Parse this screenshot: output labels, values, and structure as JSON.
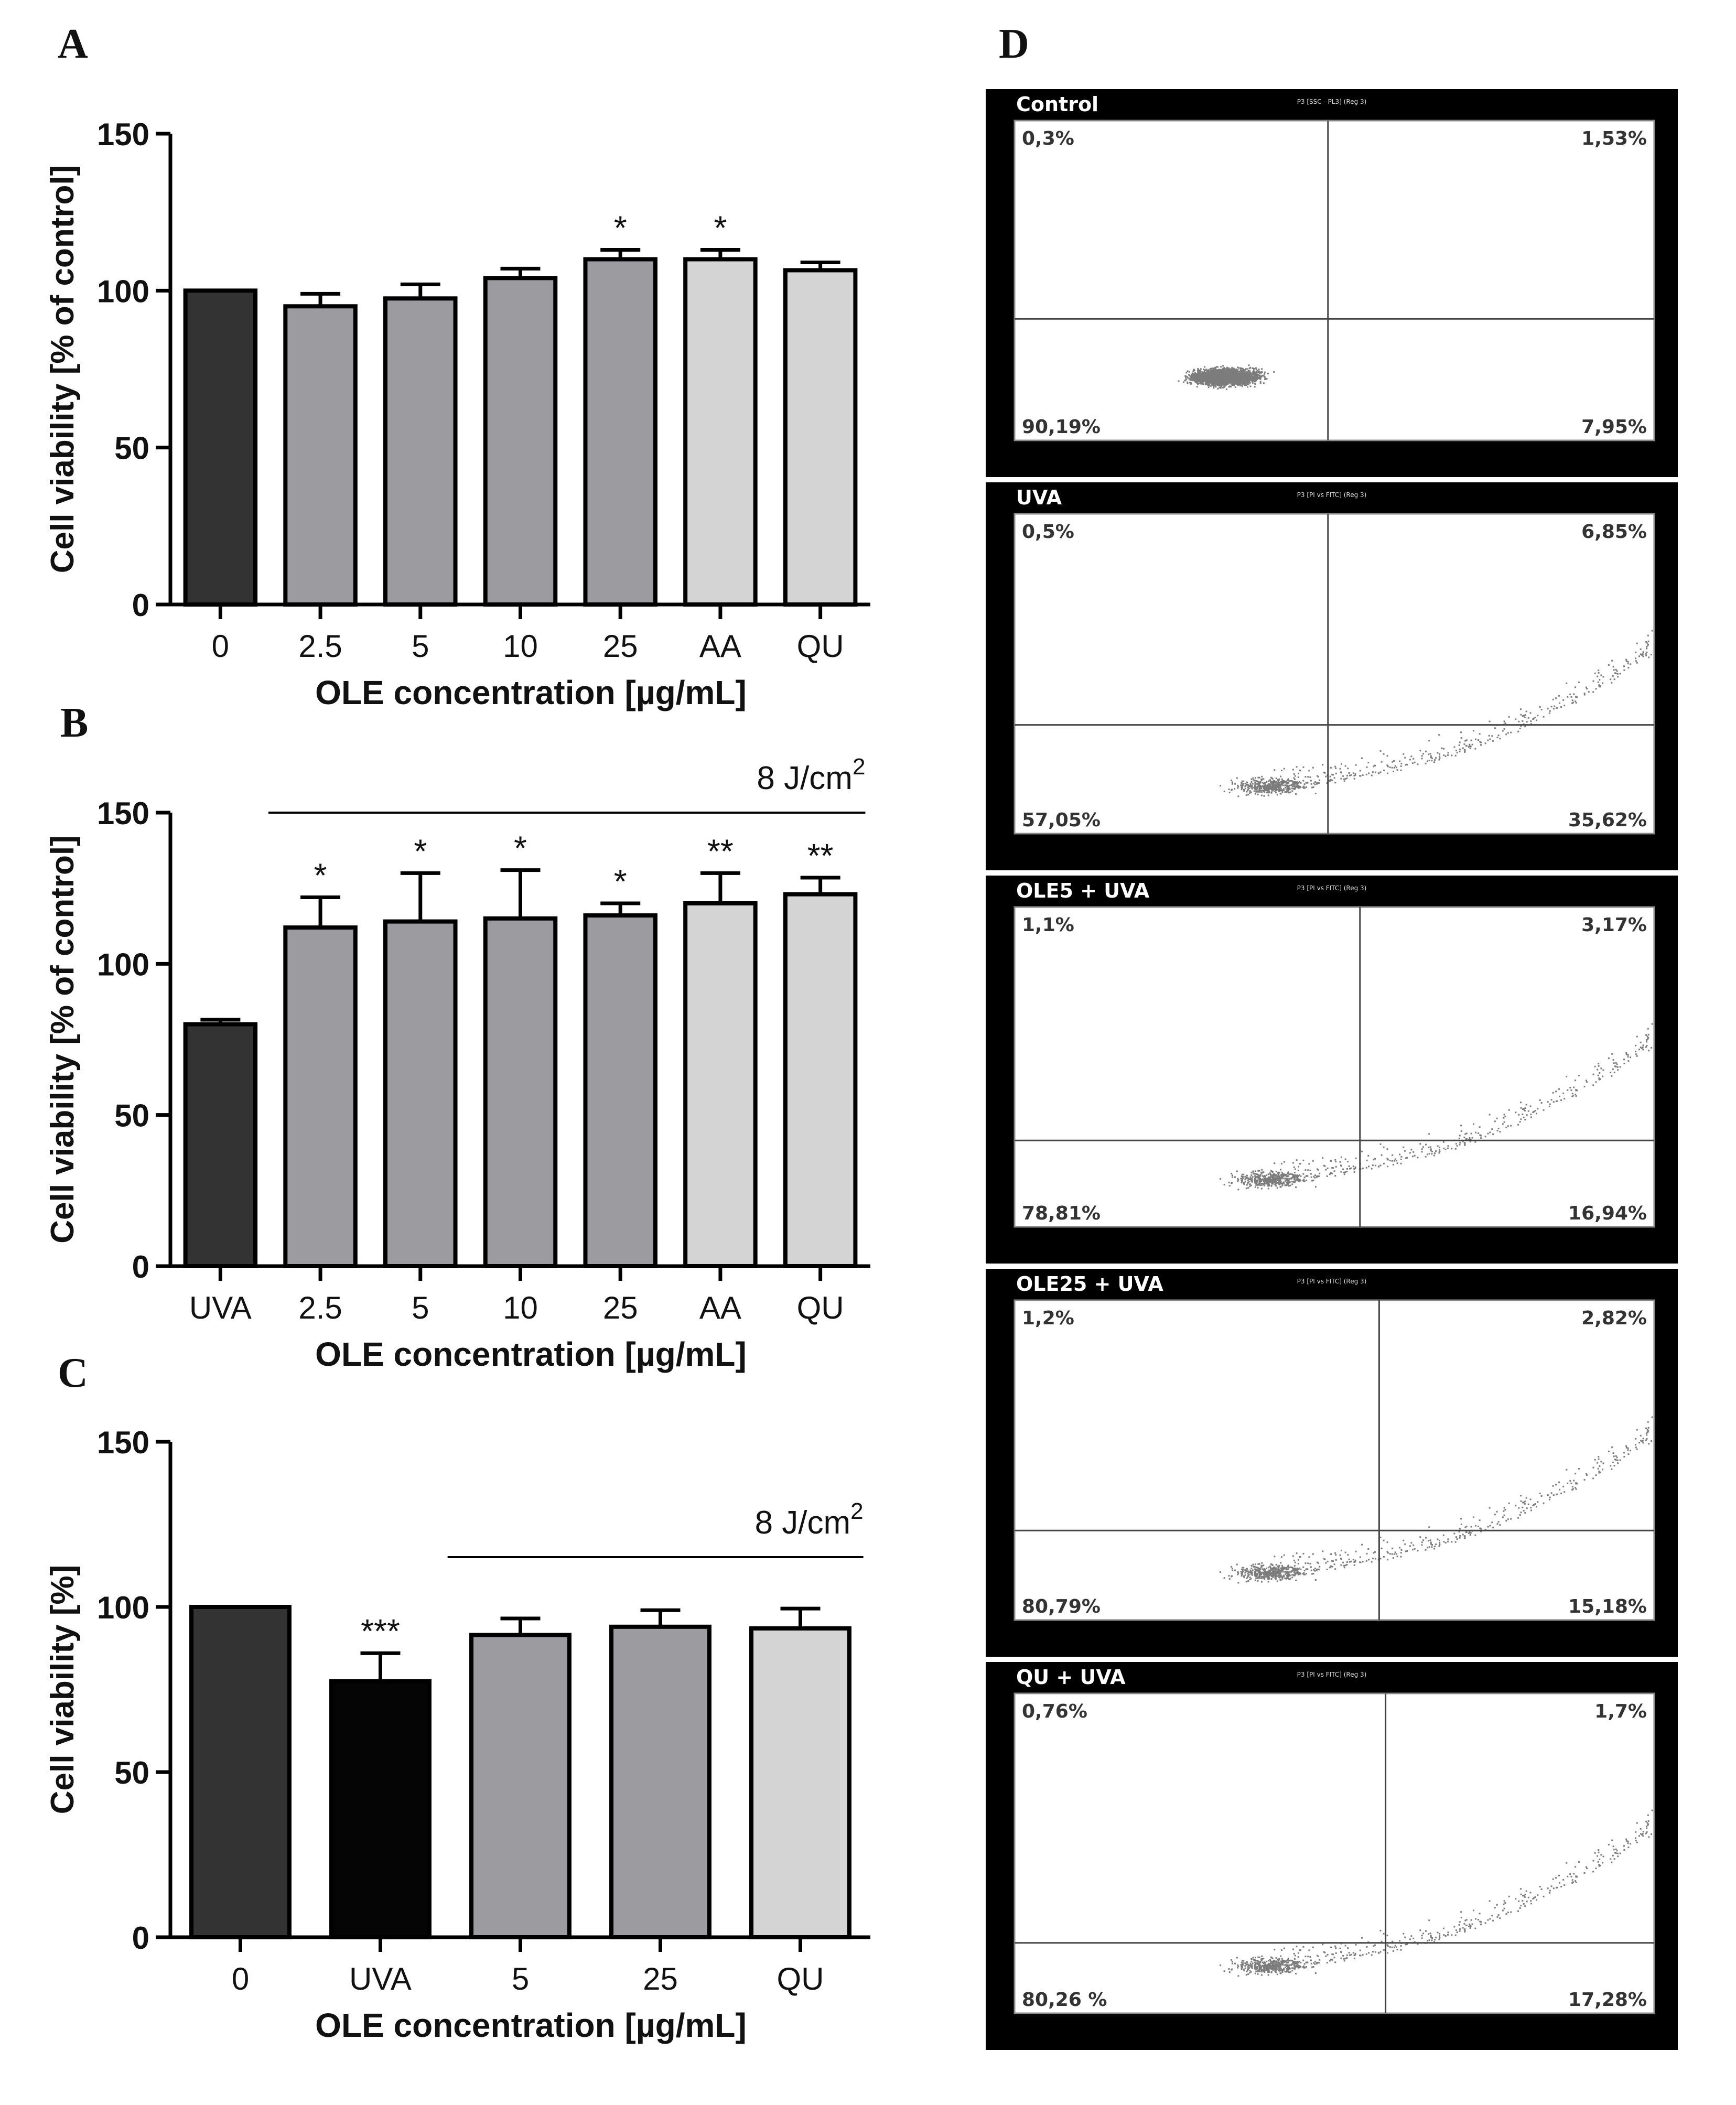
{
  "panel_labels": {
    "A": "A",
    "B": "B",
    "C": "C",
    "D": "D"
  },
  "chart_data": [
    {
      "panel": "A",
      "type": "bar",
      "categories": [
        "0",
        "2.5",
        "5",
        "10",
        "25",
        "AA",
        "QU"
      ],
      "values": [
        100,
        95,
        97.5,
        104,
        110,
        110,
        106.5
      ],
      "errors": [
        0,
        4,
        4.5,
        3,
        3,
        3,
        2.5
      ],
      "significance": [
        "",
        "",
        "",
        "",
        "*",
        "*",
        ""
      ],
      "bar_colors": [
        "#333333",
        "#9b9ba0",
        "#9b9ba0",
        "#9b9ba0",
        "#9b9ba0",
        "#d4d4d4",
        "#d4d4d4"
      ],
      "ylabel": "Cell viability [% of control]",
      "xlabel": "OLE concentration [µg/mL]",
      "ylim": [
        0,
        150
      ],
      "yticks": [
        "0",
        "50",
        "100",
        "150"
      ],
      "bracket": null
    },
    {
      "panel": "B",
      "type": "bar",
      "categories": [
        "UVA",
        "2.5",
        "5",
        "10",
        "25",
        "AA",
        "QU"
      ],
      "values": [
        80,
        112,
        114,
        115,
        116,
        120,
        123
      ],
      "errors": [
        1.5,
        10,
        16,
        16,
        4,
        10,
        5.5
      ],
      "significance": [
        "",
        "*",
        "*",
        "*",
        "*",
        "**",
        "**"
      ],
      "bar_colors": [
        "#333333",
        "#9b9ba0",
        "#9b9ba0",
        "#9b9ba0",
        "#9b9ba0",
        "#d4d4d4",
        "#d4d4d4"
      ],
      "ylabel": "Cell viability [% of control]",
      "xlabel": "OLE concentration [µg/mL]",
      "ylim": [
        0,
        150
      ],
      "yticks": [
        "0",
        "50",
        "100",
        "150"
      ],
      "bracket": {
        "label": "8 J/cm",
        "sup": "2",
        "from": 1,
        "to": 6
      }
    },
    {
      "panel": "C",
      "type": "bar",
      "categories": [
        "0",
        "UVA",
        "5",
        "25",
        "QU"
      ],
      "values": [
        100,
        77.5,
        91.5,
        94,
        93.5
      ],
      "errors": [
        0,
        8.5,
        5,
        5,
        6
      ],
      "significance": [
        "",
        "***",
        "",
        "",
        ""
      ],
      "bar_colors": [
        "#333333",
        "#050505",
        "#9b9ba0",
        "#9b9ba0",
        "#d4d4d4"
      ],
      "ylabel": "Cell viability [%]",
      "xlabel": "OLE concentration [µg/mL]",
      "ylim": [
        0,
        150
      ],
      "yticks": [
        "0",
        "50",
        "100",
        "150"
      ],
      "bracket": {
        "label": "8 J/cm",
        "sup": "2",
        "from": 2,
        "to": 4
      }
    },
    {
      "panel": "D",
      "type": "scatter",
      "subtype": "flow-cytometry-quadrant",
      "plots": [
        {
          "title": "Control",
          "header": "P3 [SSC - PL3] (Reg 3)",
          "ul": "0,3%",
          "ur": "1,53%",
          "ll": "90,19%",
          "lr": "7,95%"
        },
        {
          "title": "UVA",
          "header": "P3 [PI vs FITC] (Reg 3)",
          "ul": "0,5%",
          "ur": "6,85%",
          "ll": "57,05%",
          "lr": "35,62%"
        },
        {
          "title": "OLE5 + UVA",
          "header": "P3 [PI vs FITC] (Reg 3)",
          "ul": "1,1%",
          "ur": "3,17%",
          "ll": "78,81%",
          "lr": "16,94%"
        },
        {
          "title": "OLE25 + UVA",
          "header": "P3 [PI vs FITC] (Reg 3)",
          "ul": "1,2%",
          "ur": "2,82%",
          "ll": "80,79%",
          "lr": "15,18%"
        },
        {
          "title": "QU + UVA",
          "header": "P3 [PI vs FITC] (Reg 3)",
          "ul": "0,76%",
          "ur": "1,7%",
          "ll": "80,26 %",
          "lr": "17,28%"
        }
      ]
    }
  ]
}
